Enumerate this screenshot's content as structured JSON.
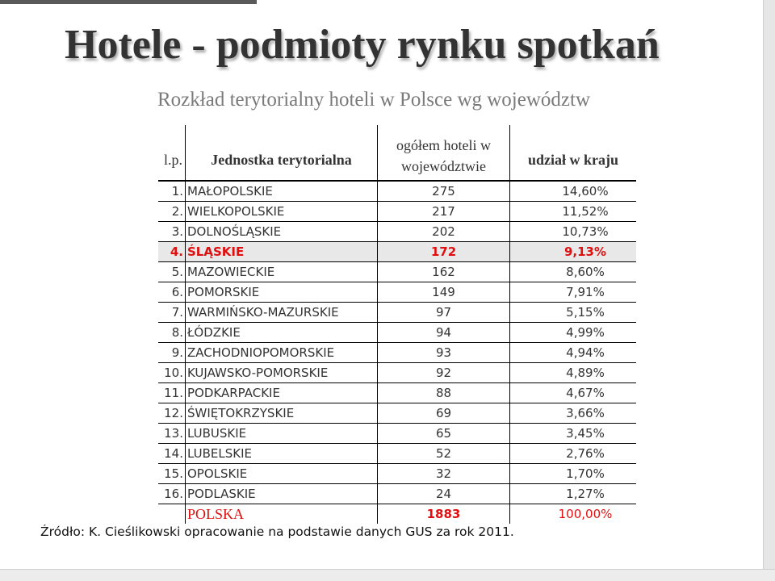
{
  "slide": {
    "title": "Hotele - podmioty rynku spotkań",
    "subtitle": "Rozkład terytorialny hoteli w Polsce wg województw",
    "source": "Źródło: K. Cieślikowski opracowanie na podstawie danych GUS za rok 2011."
  },
  "table": {
    "headers": {
      "lp": "l.p.",
      "name": "Jednostka terytorialna",
      "count_line1": "ogółem hoteli w",
      "count_line2": "województwie",
      "share": "udział w kraju"
    },
    "rows": [
      {
        "lp": "1.",
        "name": "MAŁOPOLSKIE",
        "count": "275",
        "share": "14,60%"
      },
      {
        "lp": "2.",
        "name": "WIELKOPOLSKIE",
        "count": "217",
        "share": "11,52%"
      },
      {
        "lp": "3.",
        "name": "DOLNOŚLĄSKIE",
        "count": "202",
        "share": "10,73%"
      },
      {
        "lp": "4.",
        "name": "ŚLĄSKIE",
        "count": "172",
        "share": "9,13%"
      },
      {
        "lp": "5.",
        "name": "MAZOWIECKIE",
        "count": "162",
        "share": "8,60%"
      },
      {
        "lp": "6.",
        "name": "POMORSKIE",
        "count": "149",
        "share": "7,91%"
      },
      {
        "lp": "7.",
        "name": "WARMIŃSKO-MAZURSKIE",
        "count": "97",
        "share": "5,15%"
      },
      {
        "lp": "8.",
        "name": "ŁÓDZKIE",
        "count": "94",
        "share": "4,99%"
      },
      {
        "lp": "9.",
        "name": "ZACHODNIOPOMORSKIE",
        "count": "93",
        "share": "4,94%"
      },
      {
        "lp": "10.",
        "name": "KUJAWSKO-POMORSKIE",
        "count": "92",
        "share": "4,89%"
      },
      {
        "lp": "11.",
        "name": "PODKARPACKIE",
        "count": "88",
        "share": "4,67%"
      },
      {
        "lp": "12.",
        "name": "ŚWIĘTOKRZYSKIE",
        "count": "69",
        "share": "3,66%"
      },
      {
        "lp": "13.",
        "name": "LUBUSKIE",
        "count": "65",
        "share": "3,45%"
      },
      {
        "lp": "14.",
        "name": "LUBELSKIE",
        "count": "52",
        "share": "2,76%"
      },
      {
        "lp": "15.",
        "name": "OPOLSKIE",
        "count": "32",
        "share": "1,70%"
      },
      {
        "lp": "16.",
        "name": "PODLASKIE",
        "count": "24",
        "share": "1,27%"
      }
    ],
    "highlight_row": 3,
    "total": {
      "name": "POLSKA",
      "count": "1883",
      "share": "100,00%"
    }
  },
  "colors": {
    "highlight_text": "#e01010",
    "highlight_background": "#e8e8e8",
    "title_text": "#333333",
    "subtitle_text": "#7a7a7a"
  }
}
